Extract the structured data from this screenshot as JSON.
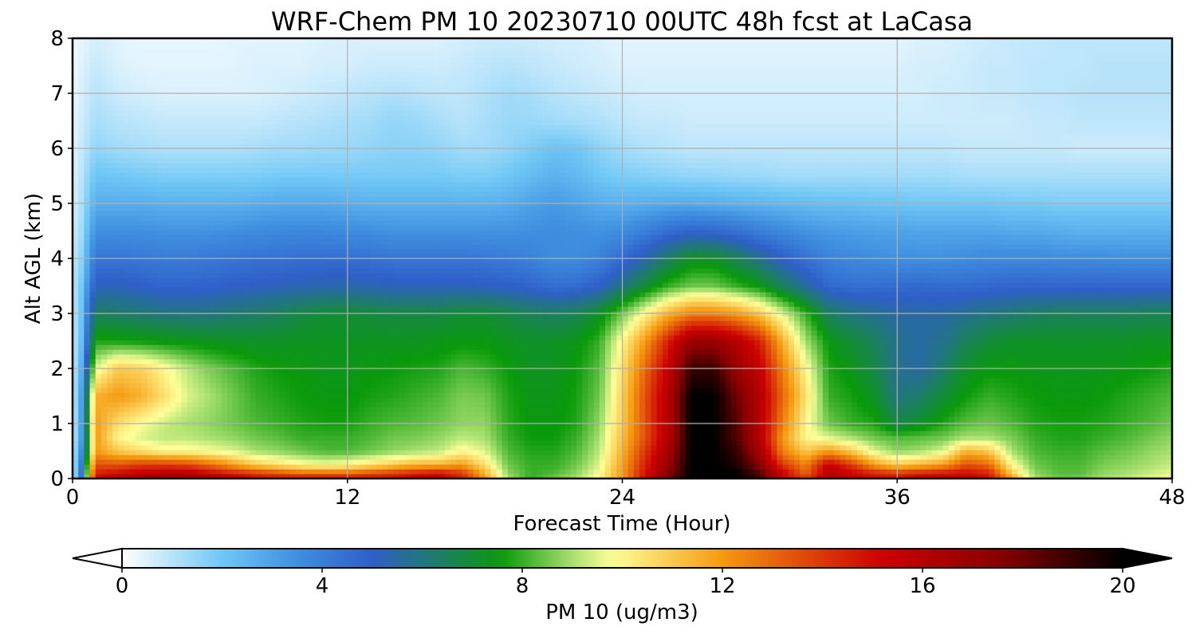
{
  "chart_data": {
    "type": "heatmap",
    "title": "WRF-Chem PM 10  20230710 00UTC 48h fcst at LaCasa",
    "xlabel": "Forecast Time (Hour)",
    "ylabel": "Alt AGL (km)",
    "xlim": [
      0,
      48
    ],
    "ylim": [
      0,
      8
    ],
    "x_ticks": [
      0,
      12,
      24,
      36,
      48
    ],
    "y_ticks": [
      0,
      1,
      2,
      3,
      4,
      5,
      6,
      7,
      8
    ],
    "grid": true,
    "colorbar": {
      "label": "PM 10  (ug/m3)",
      "min": 0,
      "max": 20,
      "ticks": [
        0,
        4,
        8,
        12,
        16,
        20
      ],
      "extend": "both",
      "placement": "bottom",
      "colors": [
        {
          "value": 0,
          "color": "#ffffff"
        },
        {
          "value": 2,
          "color": "#6fc7f5"
        },
        {
          "value": 3.5,
          "color": "#3f8fe0"
        },
        {
          "value": 5,
          "color": "#2f5fc8"
        },
        {
          "value": 6.2,
          "color": "#1f7a70"
        },
        {
          "value": 7.6,
          "color": "#0a9a0a"
        },
        {
          "value": 9,
          "color": "#a8e070"
        },
        {
          "value": 9.8,
          "color": "#ffff99"
        },
        {
          "value": 12,
          "color": "#f59a10"
        },
        {
          "value": 13.6,
          "color": "#e04a0a"
        },
        {
          "value": 15.2,
          "color": "#cc0000"
        },
        {
          "value": 17.5,
          "color": "#8a0000"
        },
        {
          "value": 20,
          "color": "#000000"
        }
      ]
    },
    "x": [
      0,
      0.3,
      1,
      2,
      3,
      4,
      5,
      6,
      7,
      8,
      9,
      10,
      11,
      12,
      13,
      14,
      15,
      16,
      17,
      18,
      19,
      20,
      21,
      22,
      23,
      24,
      25,
      26,
      27,
      28,
      29,
      30,
      31,
      32,
      33,
      34,
      35,
      36,
      37,
      38,
      39,
      40,
      41,
      42,
      43,
      44,
      45,
      46,
      47,
      48
    ],
    "y": [
      0,
      0.1,
      0.25,
      0.5,
      0.75,
      1,
      1.5,
      2,
      2.5,
      3,
      3.5,
      4,
      4.5,
      5,
      5.5,
      6,
      6.5,
      7,
      7.5,
      8
    ],
    "z": [
      [
        1.0,
        3.0,
        15.0,
        16.0,
        17.0,
        17.5,
        17.5,
        17.0,
        16.0,
        15.0,
        15.0,
        15.0,
        15.0,
        15.0,
        15.0,
        15.0,
        15.5,
        15.5,
        14.5,
        12.0,
        9.0,
        8.0,
        8.5,
        9.0,
        10.0,
        12.0,
        15.0,
        18.0,
        20.0,
        20.0,
        20.0,
        19.0,
        15.0,
        14.0,
        16.0,
        15.5,
        15.0,
        15.0,
        15.5,
        15.5,
        15.5,
        15.0,
        12.0,
        9.0,
        8.5,
        8.5,
        9.0,
        9.2,
        9.5,
        9.8
      ],
      [
        1.0,
        3.0,
        14.5,
        15.0,
        15.5,
        15.8,
        15.8,
        15.2,
        14.5,
        14.0,
        13.5,
        13.0,
        13.0,
        13.0,
        13.5,
        14.0,
        14.5,
        15.0,
        14.0,
        11.5,
        8.8,
        8.0,
        8.2,
        8.8,
        9.8,
        12.0,
        14.8,
        17.5,
        20.0,
        20.0,
        20.0,
        18.5,
        15.5,
        13.0,
        16.0,
        15.2,
        14.5,
        14.0,
        14.5,
        14.8,
        15.0,
        14.5,
        11.0,
        8.8,
        8.3,
        8.3,
        8.8,
        9.0,
        9.3,
        9.6
      ],
      [
        1.0,
        3.0,
        13.5,
        13.5,
        14.0,
        14.0,
        13.8,
        13.0,
        12.0,
        11.0,
        10.5,
        10.0,
        9.8,
        10.0,
        10.5,
        11.0,
        11.5,
        11.5,
        12.0,
        10.5,
        8.5,
        8.0,
        8.0,
        8.5,
        9.5,
        11.8,
        14.5,
        17.0,
        20.0,
        20.0,
        19.5,
        17.5,
        14.0,
        12.5,
        15.5,
        14.0,
        12.0,
        11.0,
        11.5,
        12.0,
        13.5,
        13.0,
        10.0,
        8.5,
        8.2,
        8.2,
        8.6,
        8.8,
        9.0,
        9.3
      ],
      [
        1.0,
        2.5,
        12.0,
        11.0,
        10.5,
        10.0,
        10.0,
        9.8,
        9.5,
        9.0,
        8.8,
        8.5,
        8.2,
        8.2,
        8.5,
        8.8,
        9.0,
        9.2,
        10.0,
        9.5,
        8.2,
        7.8,
        7.8,
        8.2,
        9.2,
        11.5,
        14.0,
        16.5,
        20.0,
        20.0,
        19.0,
        16.5,
        12.5,
        11.0,
        12.0,
        11.0,
        9.5,
        8.8,
        9.0,
        9.5,
        11.5,
        11.0,
        9.0,
        8.2,
        8.0,
        8.0,
        8.3,
        8.5,
        8.8,
        9.0
      ],
      [
        1.0,
        2.0,
        12.0,
        10.0,
        9.5,
        9.2,
        9.2,
        9.0,
        8.8,
        8.5,
        8.3,
        8.0,
        8.0,
        8.0,
        8.2,
        8.5,
        8.6,
        8.8,
        9.2,
        9.0,
        8.0,
        7.6,
        7.6,
        8.0,
        9.0,
        11.2,
        13.5,
        16.0,
        20.0,
        20.0,
        18.5,
        16.0,
        12.0,
        10.0,
        9.5,
        9.0,
        8.5,
        8.2,
        8.3,
        8.5,
        9.0,
        9.0,
        8.6,
        8.0,
        7.8,
        7.8,
        8.0,
        8.2,
        8.5,
        8.8
      ],
      [
        1.0,
        2.0,
        12.0,
        10.5,
        9.8,
        9.3,
        9.0,
        8.8,
        8.5,
        8.2,
        8.0,
        7.8,
        7.7,
        7.7,
        8.0,
        8.2,
        8.3,
        8.5,
        8.8,
        8.8,
        7.9,
        7.5,
        7.5,
        7.8,
        8.8,
        11.0,
        13.5,
        16.0,
        20.0,
        20.0,
        18.5,
        16.0,
        12.5,
        10.0,
        8.5,
        8.0,
        7.8,
        6.8,
        7.2,
        7.8,
        8.3,
        8.5,
        8.2,
        7.8,
        7.7,
        7.7,
        7.8,
        8.0,
        8.2,
        8.5
      ],
      [
        1.0,
        2.0,
        11.5,
        12.0,
        11.5,
        10.5,
        9.5,
        9.0,
        8.5,
        8.0,
        7.8,
        7.6,
        7.5,
        7.5,
        7.7,
        7.8,
        8.0,
        8.2,
        8.6,
        8.5,
        7.8,
        7.4,
        7.4,
        7.7,
        8.5,
        10.8,
        13.5,
        16.0,
        20.0,
        20.0,
        18.0,
        16.0,
        13.0,
        10.5,
        8.0,
        7.7,
        7.2,
        6.0,
        6.3,
        7.0,
        7.6,
        8.0,
        7.8,
        7.6,
        7.5,
        7.5,
        7.6,
        7.8,
        8.0,
        8.2
      ],
      [
        1.0,
        1.8,
        9.5,
        11.0,
        10.8,
        10.0,
        9.2,
        8.6,
        8.2,
        7.8,
        7.6,
        7.5,
        7.4,
        7.4,
        7.5,
        7.6,
        7.7,
        7.8,
        8.2,
        8.0,
        7.6,
        7.3,
        7.3,
        7.6,
        8.3,
        10.5,
        13.0,
        15.5,
        19.0,
        19.0,
        17.0,
        15.5,
        12.5,
        10.0,
        7.8,
        7.4,
        6.8,
        5.8,
        5.5,
        6.3,
        7.2,
        7.5,
        7.5,
        7.4,
        7.4,
        7.4,
        7.4,
        7.5,
        7.6,
        7.8
      ],
      [
        1.0,
        1.5,
        7.8,
        7.7,
        7.6,
        7.5,
        7.4,
        7.3,
        7.2,
        7.2,
        7.2,
        7.3,
        7.3,
        7.3,
        7.3,
        7.3,
        7.3,
        7.4,
        7.5,
        7.5,
        7.3,
        7.2,
        7.2,
        7.4,
        8.0,
        10.0,
        12.0,
        14.5,
        17.0,
        17.0,
        16.0,
        14.5,
        11.5,
        9.0,
        7.5,
        7.0,
        6.5,
        5.8,
        5.5,
        5.8,
        6.5,
        7.0,
        7.2,
        7.2,
        7.2,
        7.2,
        7.2,
        7.2,
        7.3,
        7.3
      ],
      [
        1.0,
        1.5,
        6.5,
        6.3,
        6.2,
        6.0,
        6.0,
        6.0,
        6.2,
        6.3,
        6.5,
        6.8,
        7.0,
        7.0,
        6.9,
        6.8,
        6.8,
        6.8,
        7.0,
        7.0,
        6.8,
        6.5,
        6.4,
        6.6,
        7.2,
        8.5,
        10.0,
        11.5,
        12.5,
        12.5,
        12.0,
        11.0,
        9.5,
        8.0,
        6.5,
        6.0,
        5.8,
        5.5,
        5.5,
        5.5,
        5.8,
        6.0,
        6.2,
        6.4,
        6.5,
        6.5,
        6.5,
        6.5,
        6.6,
        6.6
      ],
      [
        1.0,
        1.5,
        5.2,
        5.2,
        5.0,
        4.8,
        4.8,
        4.9,
        5.0,
        5.1,
        5.2,
        5.3,
        5.4,
        5.4,
        5.3,
        5.2,
        5.2,
        5.2,
        5.2,
        5.1,
        5.0,
        4.8,
        4.5,
        4.6,
        5.0,
        6.0,
        7.0,
        8.0,
        8.5,
        8.5,
        8.0,
        7.5,
        6.5,
        5.6,
        4.7,
        4.5,
        4.5,
        4.6,
        4.7,
        4.6,
        4.6,
        4.7,
        4.8,
        4.8,
        4.8,
        4.8,
        4.8,
        4.8,
        4.8,
        4.8
      ],
      [
        1.0,
        1.2,
        4.3,
        4.3,
        4.2,
        4.1,
        4.1,
        4.2,
        4.3,
        4.4,
        4.4,
        4.5,
        4.5,
        4.5,
        4.4,
        4.3,
        4.3,
        4.3,
        4.3,
        4.2,
        4.1,
        3.9,
        3.6,
        3.6,
        3.9,
        4.6,
        5.4,
        6.4,
        7.2,
        7.2,
        6.6,
        5.8,
        5.0,
        4.4,
        3.9,
        3.7,
        3.6,
        3.5,
        3.5,
        3.5,
        3.6,
        3.7,
        3.7,
        3.7,
        3.6,
        3.6,
        3.6,
        3.5,
        3.5,
        3.5
      ],
      [
        0.8,
        1.0,
        3.5,
        3.5,
        3.5,
        3.4,
        3.4,
        3.4,
        3.5,
        3.6,
        3.7,
        3.7,
        3.7,
        3.6,
        3.5,
        3.4,
        3.4,
        3.4,
        3.4,
        3.4,
        3.4,
        3.5,
        3.6,
        3.5,
        3.4,
        3.6,
        4.0,
        4.5,
        4.8,
        4.7,
        4.4,
        4.0,
        3.7,
        3.4,
        3.2,
        3.1,
        3.0,
        3.0,
        2.9,
        2.9,
        2.9,
        2.9,
        2.8,
        2.8,
        2.7,
        2.6,
        2.6,
        2.6,
        2.6,
        2.6
      ],
      [
        0.6,
        0.9,
        2.7,
        2.7,
        2.7,
        2.6,
        2.6,
        2.6,
        2.6,
        2.7,
        2.8,
        2.8,
        2.8,
        2.7,
        2.6,
        2.6,
        2.6,
        2.6,
        2.6,
        2.6,
        2.7,
        3.0,
        3.2,
        3.0,
        2.7,
        2.6,
        2.7,
        2.8,
        2.8,
        2.7,
        2.6,
        2.5,
        2.4,
        2.3,
        2.2,
        2.2,
        2.1,
        2.1,
        2.0,
        2.0,
        2.0,
        2.0,
        1.9,
        1.9,
        1.8,
        1.8,
        1.8,
        1.8,
        1.8,
        1.8
      ],
      [
        0.5,
        0.8,
        2.1,
        2.0,
        1.9,
        1.8,
        1.8,
        1.8,
        1.8,
        1.8,
        1.9,
        1.9,
        1.9,
        1.9,
        1.9,
        1.9,
        1.9,
        1.9,
        1.8,
        1.8,
        2.0,
        2.3,
        2.6,
        2.4,
        2.0,
        1.8,
        1.7,
        1.6,
        1.5,
        1.5,
        1.4,
        1.4,
        1.3,
        1.3,
        1.3,
        1.3,
        1.3,
        1.3,
        1.3,
        1.3,
        1.2,
        1.2,
        1.2,
        1.2,
        1.2,
        1.2,
        1.2,
        1.2,
        1.2,
        1.2
      ],
      [
        0.4,
        0.7,
        1.5,
        1.3,
        1.2,
        1.1,
        1.1,
        1.1,
        1.1,
        1.2,
        1.3,
        1.3,
        1.4,
        1.4,
        1.5,
        1.6,
        1.6,
        1.5,
        1.3,
        1.3,
        1.5,
        1.8,
        2.1,
        2.0,
        1.6,
        1.3,
        1.1,
        1.0,
        0.9,
        0.9,
        0.9,
        0.9,
        0.9,
        0.9,
        0.9,
        0.9,
        0.9,
        0.9,
        0.9,
        0.9,
        0.8,
        0.8,
        0.8,
        0.8,
        0.8,
        0.7,
        0.7,
        0.7,
        0.7,
        0.7
      ],
      [
        0.3,
        0.6,
        1.2,
        1.0,
        0.9,
        0.8,
        0.8,
        0.8,
        0.8,
        0.8,
        0.9,
        1.0,
        1.1,
        1.2,
        1.3,
        1.5,
        1.4,
        1.2,
        1.0,
        1.2,
        1.4,
        1.4,
        1.3,
        1.2,
        1.1,
        0.9,
        0.8,
        0.8,
        0.7,
        0.7,
        0.7,
        0.7,
        0.7,
        0.7,
        0.7,
        0.7,
        0.7,
        0.7,
        0.7,
        0.7,
        0.7,
        0.7,
        0.7,
        0.8,
        0.8,
        0.9,
        0.9,
        0.9,
        0.9,
        0.9
      ],
      [
        0.3,
        0.5,
        1.0,
        0.7,
        0.6,
        0.5,
        0.5,
        0.5,
        0.5,
        0.5,
        0.6,
        0.7,
        0.8,
        0.9,
        1.0,
        1.1,
        1.0,
        0.9,
        0.9,
        1.1,
        1.3,
        1.2,
        1.0,
        0.9,
        0.8,
        0.7,
        0.6,
        0.6,
        0.6,
        0.6,
        0.6,
        0.6,
        0.6,
        0.6,
        0.6,
        0.6,
        0.6,
        0.6,
        0.6,
        0.7,
        0.7,
        0.8,
        0.8,
        0.9,
        0.9,
        1.0,
        1.0,
        1.0,
        1.0,
        1.0
      ],
      [
        0.2,
        0.4,
        0.8,
        0.5,
        0.4,
        0.4,
        0.4,
        0.4,
        0.4,
        0.5,
        0.5,
        0.5,
        0.6,
        0.6,
        0.7,
        0.7,
        0.7,
        0.7,
        0.8,
        0.9,
        1.0,
        0.9,
        0.8,
        0.7,
        0.6,
        0.5,
        0.5,
        0.5,
        0.5,
        0.5,
        0.5,
        0.5,
        0.5,
        0.5,
        0.5,
        0.5,
        0.5,
        0.5,
        0.6,
        0.6,
        0.7,
        0.8,
        0.8,
        0.9,
        0.9,
        0.9,
        1.0,
        1.0,
        1.0,
        1.0
      ],
      [
        0.2,
        0.3,
        0.6,
        0.4,
        0.3,
        0.3,
        0.3,
        0.3,
        0.4,
        0.4,
        0.4,
        0.4,
        0.5,
        0.5,
        0.5,
        0.5,
        0.5,
        0.5,
        0.6,
        0.7,
        0.7,
        0.7,
        0.6,
        0.6,
        0.5,
        0.4,
        0.4,
        0.4,
        0.4,
        0.4,
        0.4,
        0.4,
        0.4,
        0.4,
        0.4,
        0.4,
        0.4,
        0.4,
        0.5,
        0.5,
        0.6,
        0.7,
        0.8,
        0.8,
        0.9,
        0.9,
        0.9,
        0.9,
        0.9,
        0.9
      ]
    ]
  }
}
